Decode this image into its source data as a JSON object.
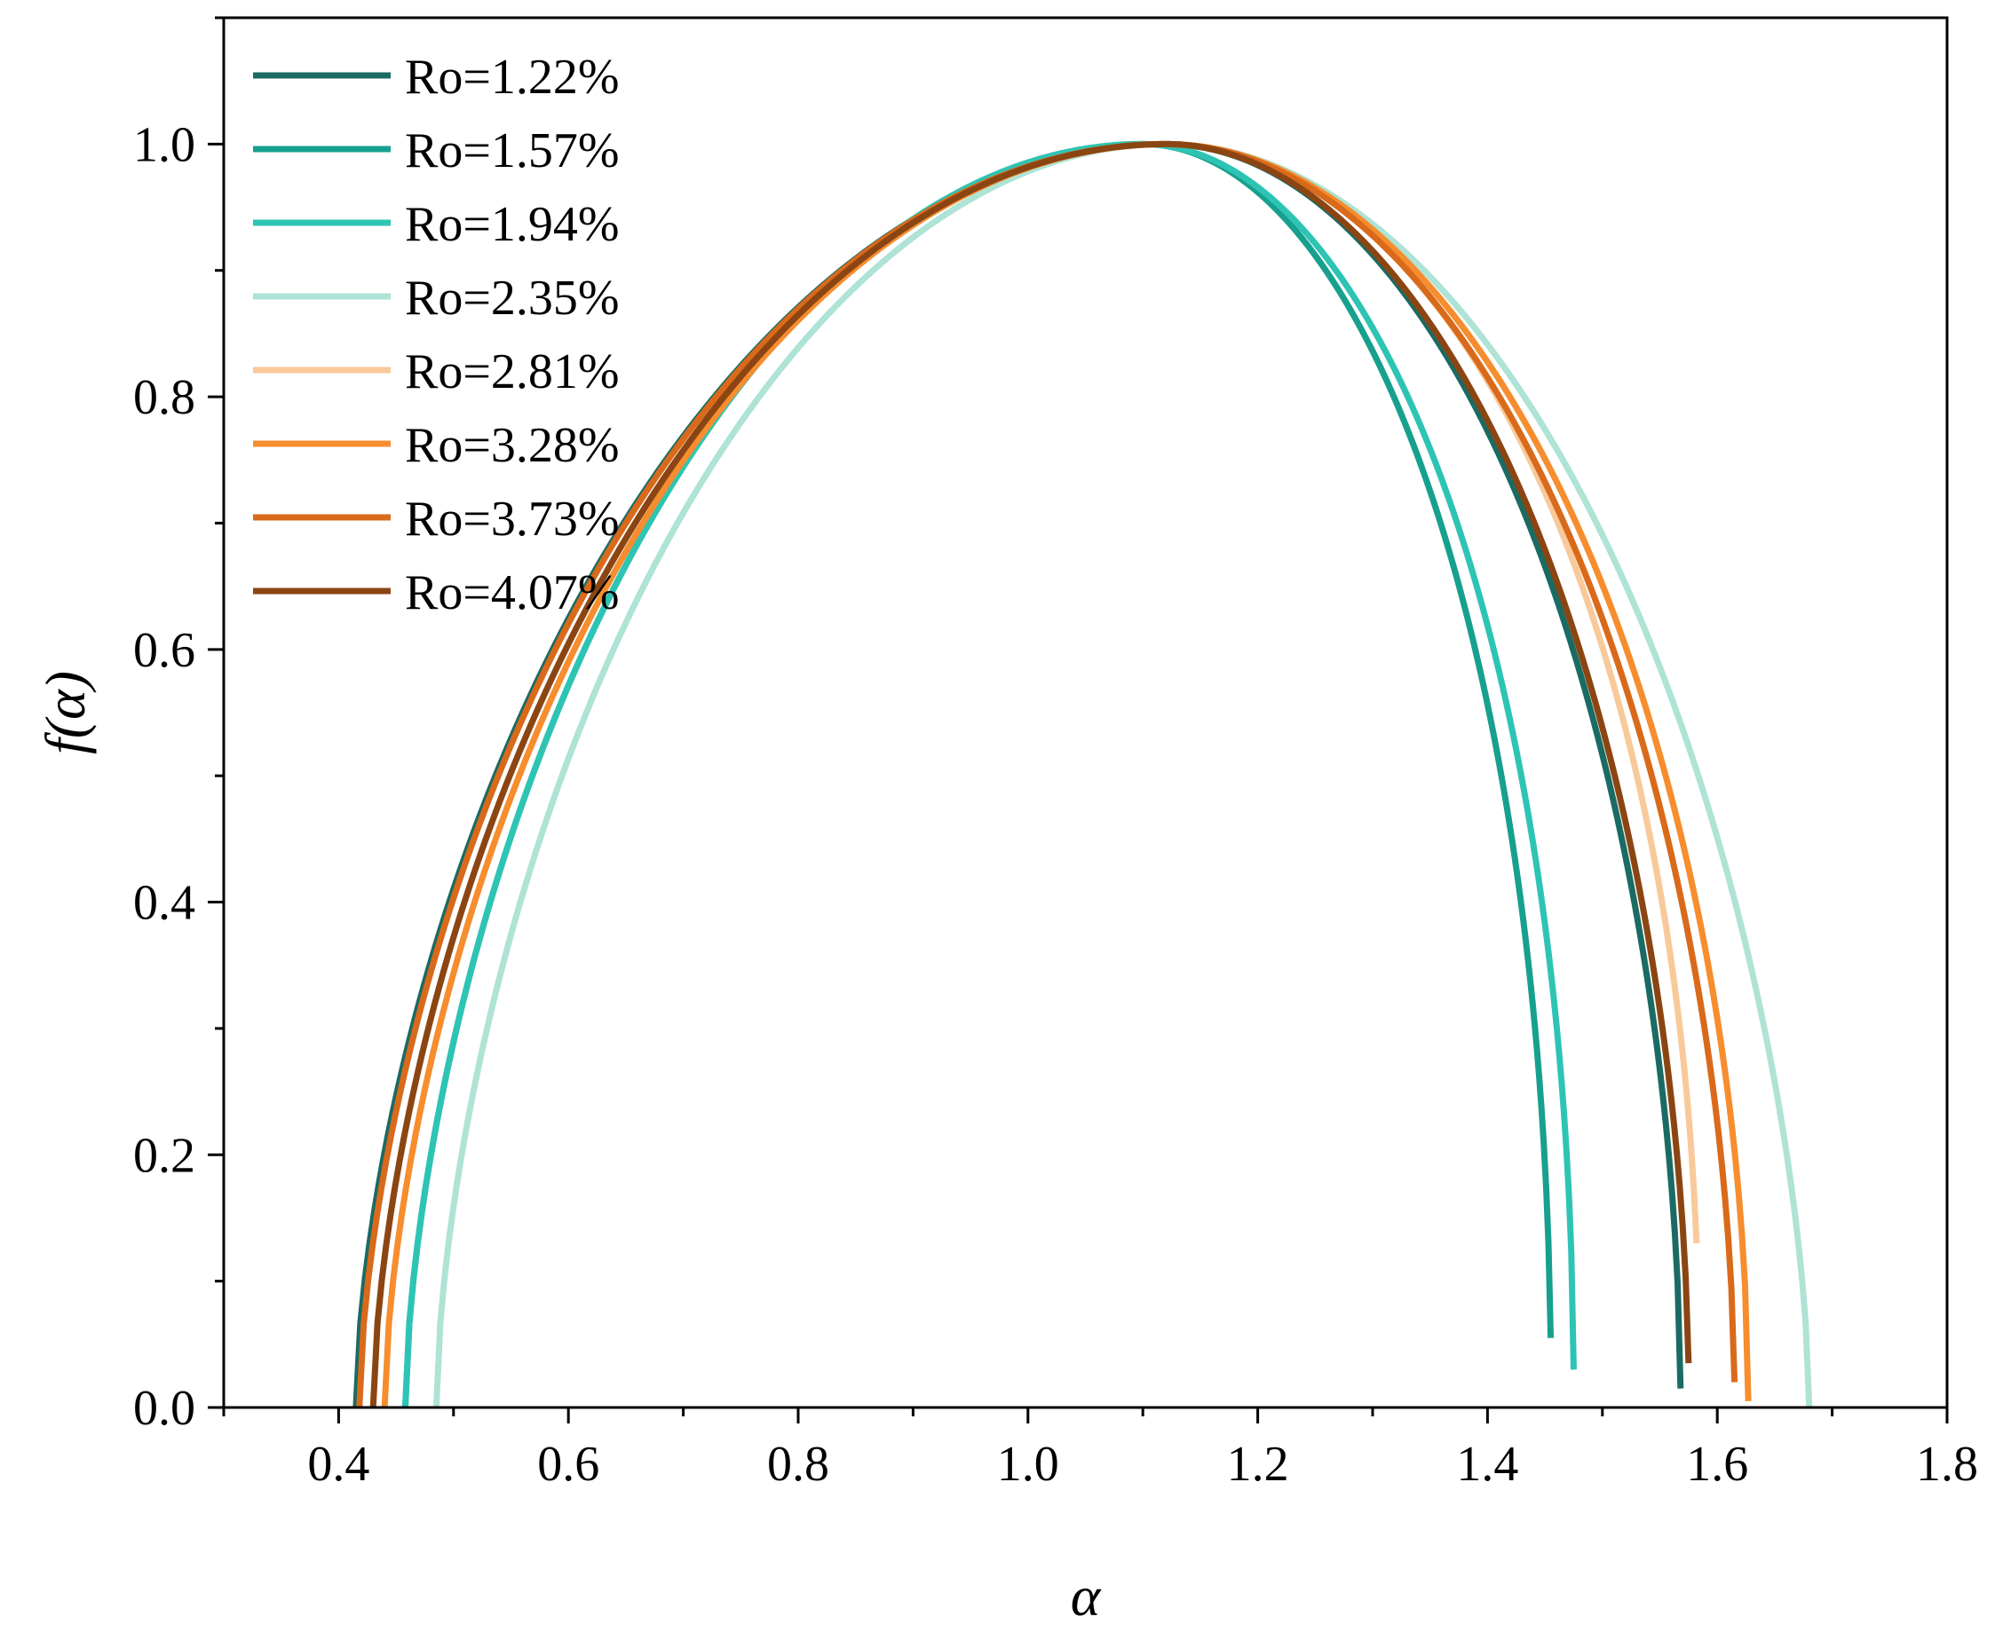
{
  "chart_data": {
    "type": "line",
    "title": "",
    "xlabel": "α",
    "ylabel": "f(α)",
    "xlim": [
      0.3,
      1.8
    ],
    "ylim": [
      0.0,
      1.1
    ],
    "xticks": [
      0.4,
      0.6,
      0.8,
      1.0,
      1.2,
      1.4,
      1.6,
      1.8
    ],
    "xtick_labels": [
      "0.4",
      "0.6",
      "0.8",
      "1.0",
      "1.2",
      "1.4",
      "1.6",
      "1.8"
    ],
    "yticks": [
      0.0,
      0.2,
      0.4,
      0.6,
      0.8,
      1.0
    ],
    "ytick_labels": [
      "0.0",
      "0.2",
      "0.4",
      "0.6",
      "0.8",
      "1.0"
    ],
    "grid": false,
    "legend_position": "top-left",
    "series": [
      {
        "name": "Ro=1.22%",
        "color": "#1a6b63",
        "alpha_min": 0.415,
        "alpha_peak": 1.12,
        "alpha_max": 1.568,
        "f_end": 0.015,
        "left_exp": 0.6,
        "right_exp": 0.52
      },
      {
        "name": "Ro=1.57%",
        "color": "#17a08e",
        "alpha_min": 0.458,
        "alpha_peak": 1.1,
        "alpha_max": 1.455,
        "f_end": 0.055,
        "left_exp": 0.6,
        "right_exp": 0.47
      },
      {
        "name": "Ro=1.94%",
        "color": "#2ec4b4",
        "alpha_min": 0.458,
        "alpha_peak": 1.1,
        "alpha_max": 1.475,
        "f_end": 0.03,
        "left_exp": 0.6,
        "right_exp": 0.47
      },
      {
        "name": "Ro=2.35%",
        "color": "#aee3d6",
        "alpha_min": 0.485,
        "alpha_peak": 1.12,
        "alpha_max": 1.68,
        "f_end": 0.0,
        "left_exp": 0.6,
        "right_exp": 0.6
      },
      {
        "name": "Ro=2.81%",
        "color": "#f8c99a",
        "alpha_min": 0.43,
        "alpha_peak": 1.12,
        "alpha_max": 1.582,
        "f_end": 0.13,
        "left_exp": 0.6,
        "right_exp": 0.46
      },
      {
        "name": "Ro=3.28%",
        "color": "#f68d2e",
        "alpha_min": 0.44,
        "alpha_peak": 1.12,
        "alpha_max": 1.627,
        "f_end": 0.005,
        "left_exp": 0.6,
        "right_exp": 0.52
      },
      {
        "name": "Ro=3.73%",
        "color": "#d96a1b",
        "alpha_min": 0.418,
        "alpha_peak": 1.12,
        "alpha_max": 1.615,
        "f_end": 0.02,
        "left_exp": 0.6,
        "right_exp": 0.53
      },
      {
        "name": "Ro=4.07%",
        "color": "#8b4513",
        "alpha_min": 0.43,
        "alpha_peak": 1.12,
        "alpha_max": 1.575,
        "f_end": 0.035,
        "left_exp": 0.6,
        "right_exp": 0.52
      }
    ]
  }
}
